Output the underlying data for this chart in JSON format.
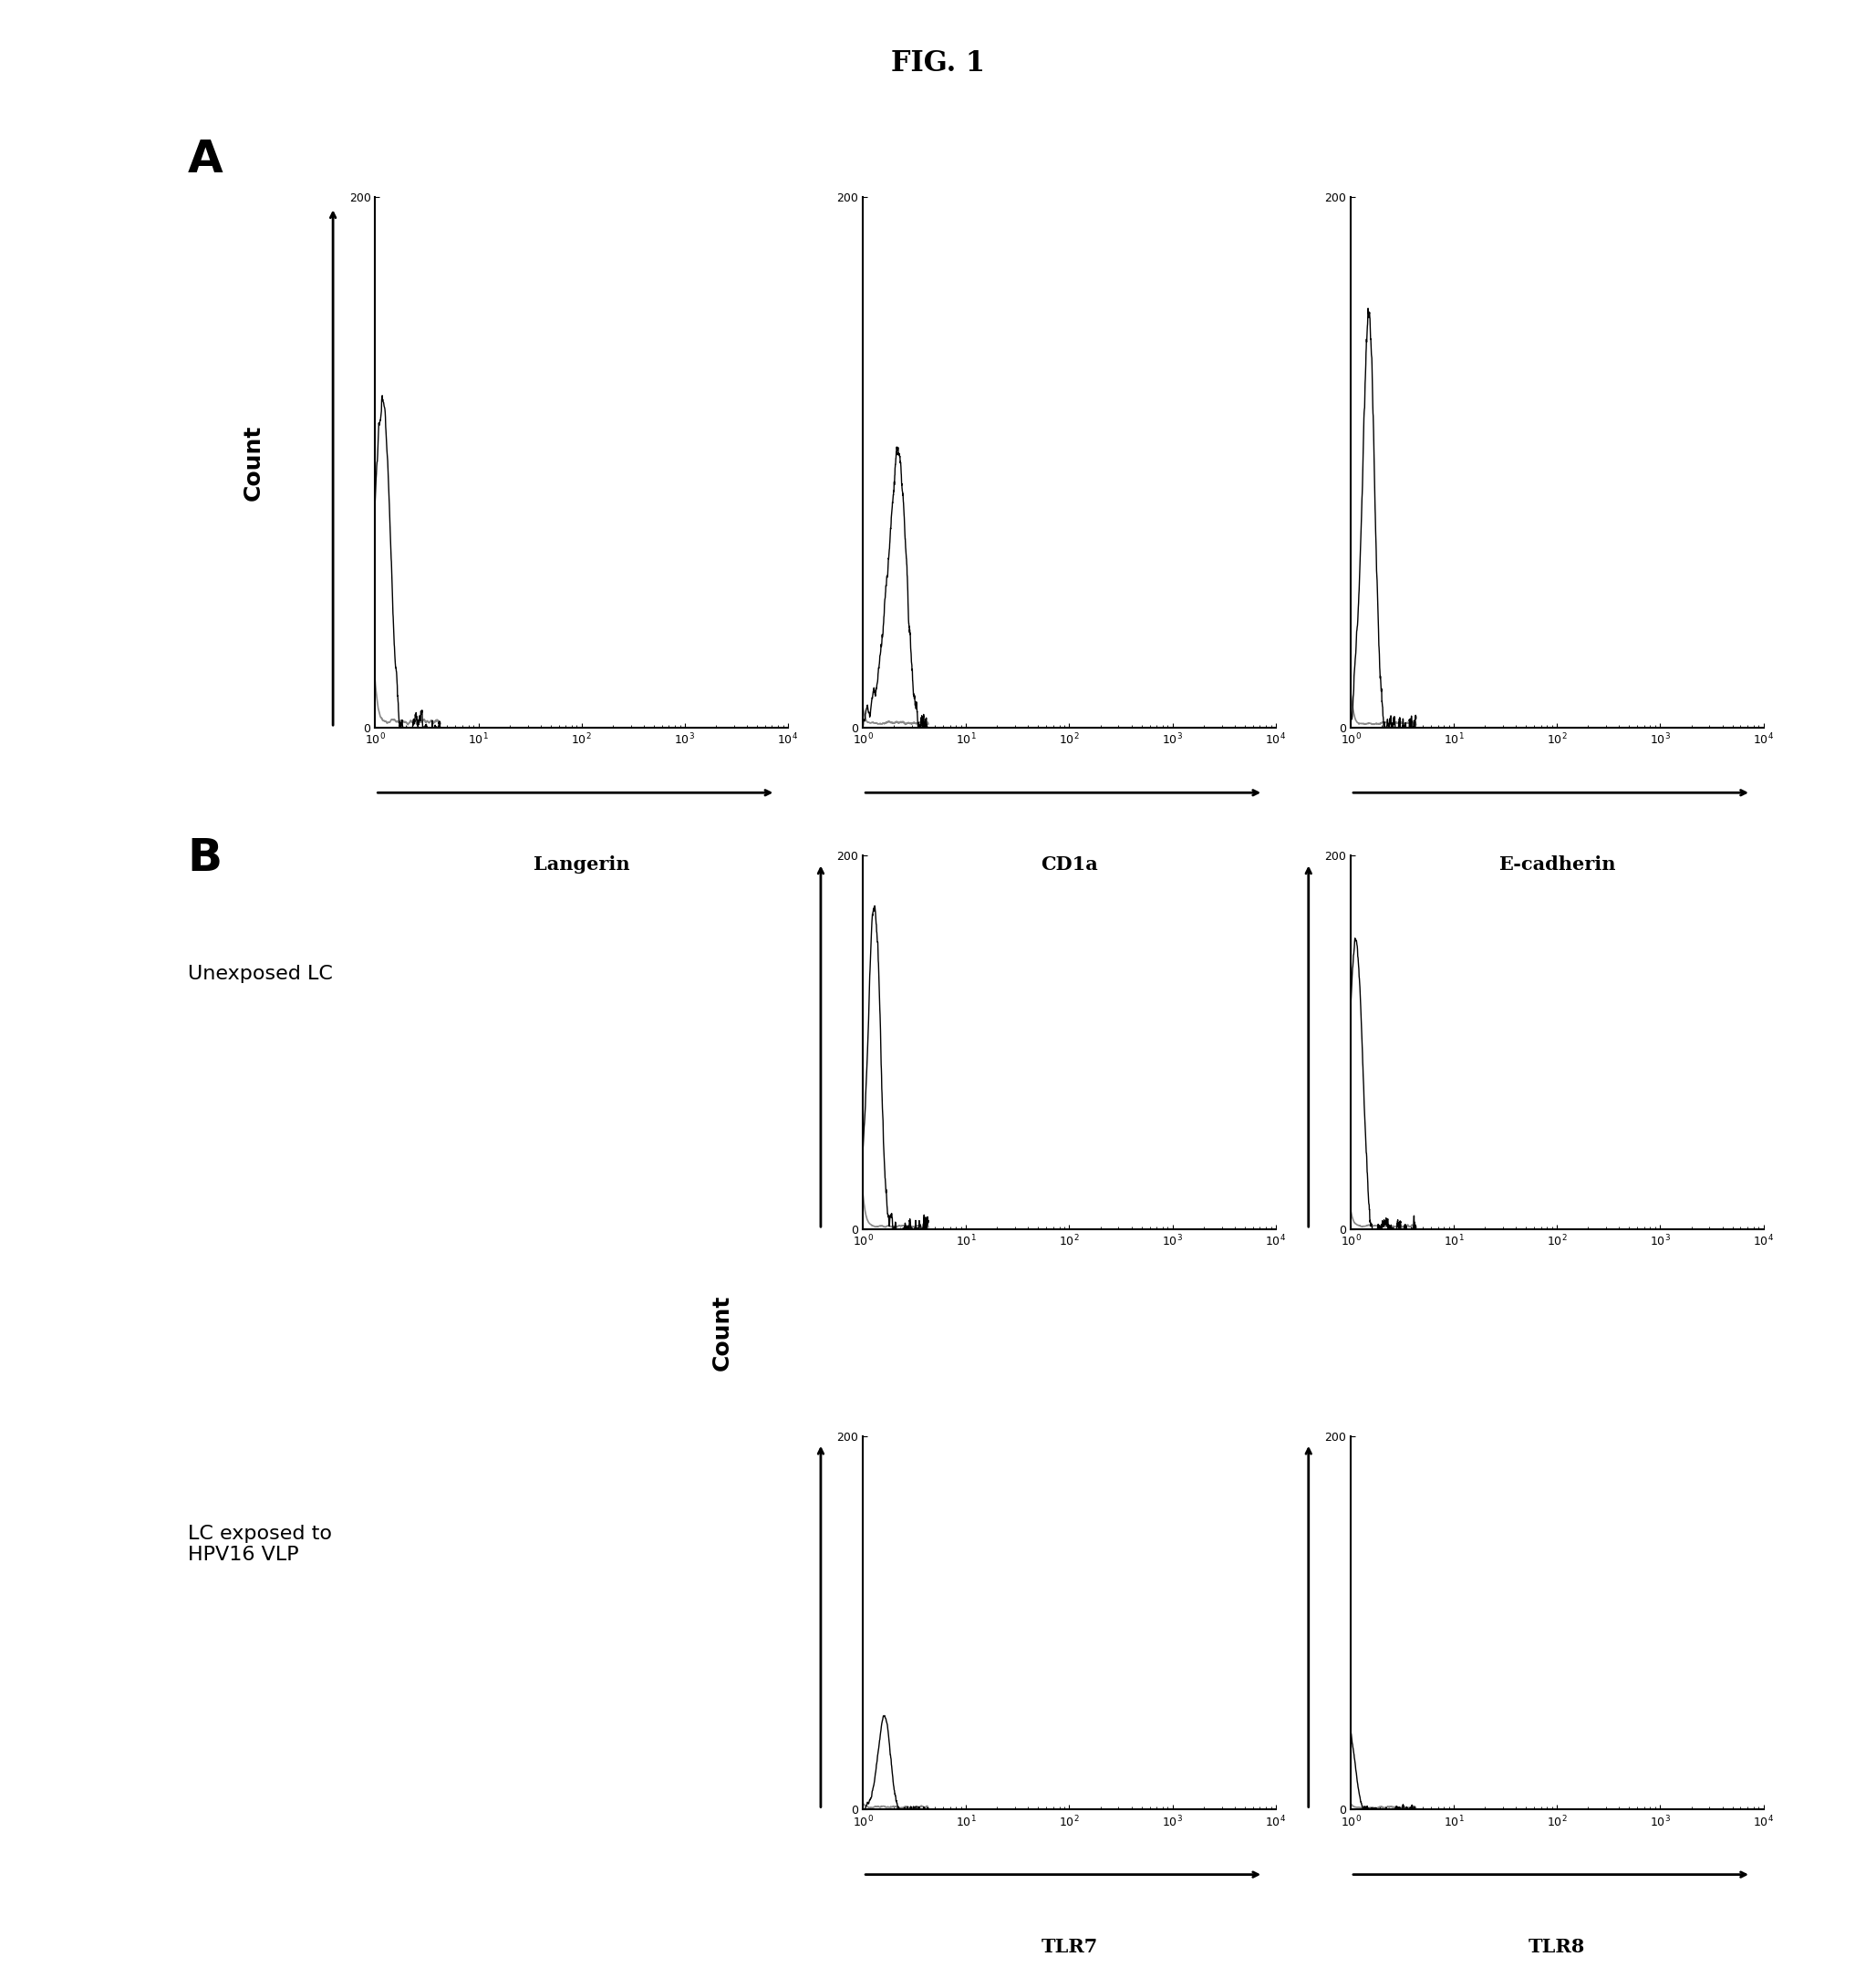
{
  "title": "FIG. 1",
  "title_fontsize": 22,
  "panel_A_label": "A",
  "panel_B_label": "B",
  "panel_label_fontsize": 36,
  "subplot_A_xlabels": [
    "Langerin",
    "CD1a",
    "E-cadherin"
  ],
  "subplot_B_xlabels": [
    "TLR7",
    "TLR8"
  ],
  "ylabel": "Count",
  "ylabel_fontsize": 18,
  "B_row_labels": [
    "Unexposed LC",
    "LC exposed to\nHPV16 VLP"
  ],
  "B_row_label_fontsize": 16,
  "gray_color": "#888888",
  "black_color": "#000000",
  "background_color": "#ffffff",
  "ylim_max": 200,
  "tick_fontsize": 9
}
